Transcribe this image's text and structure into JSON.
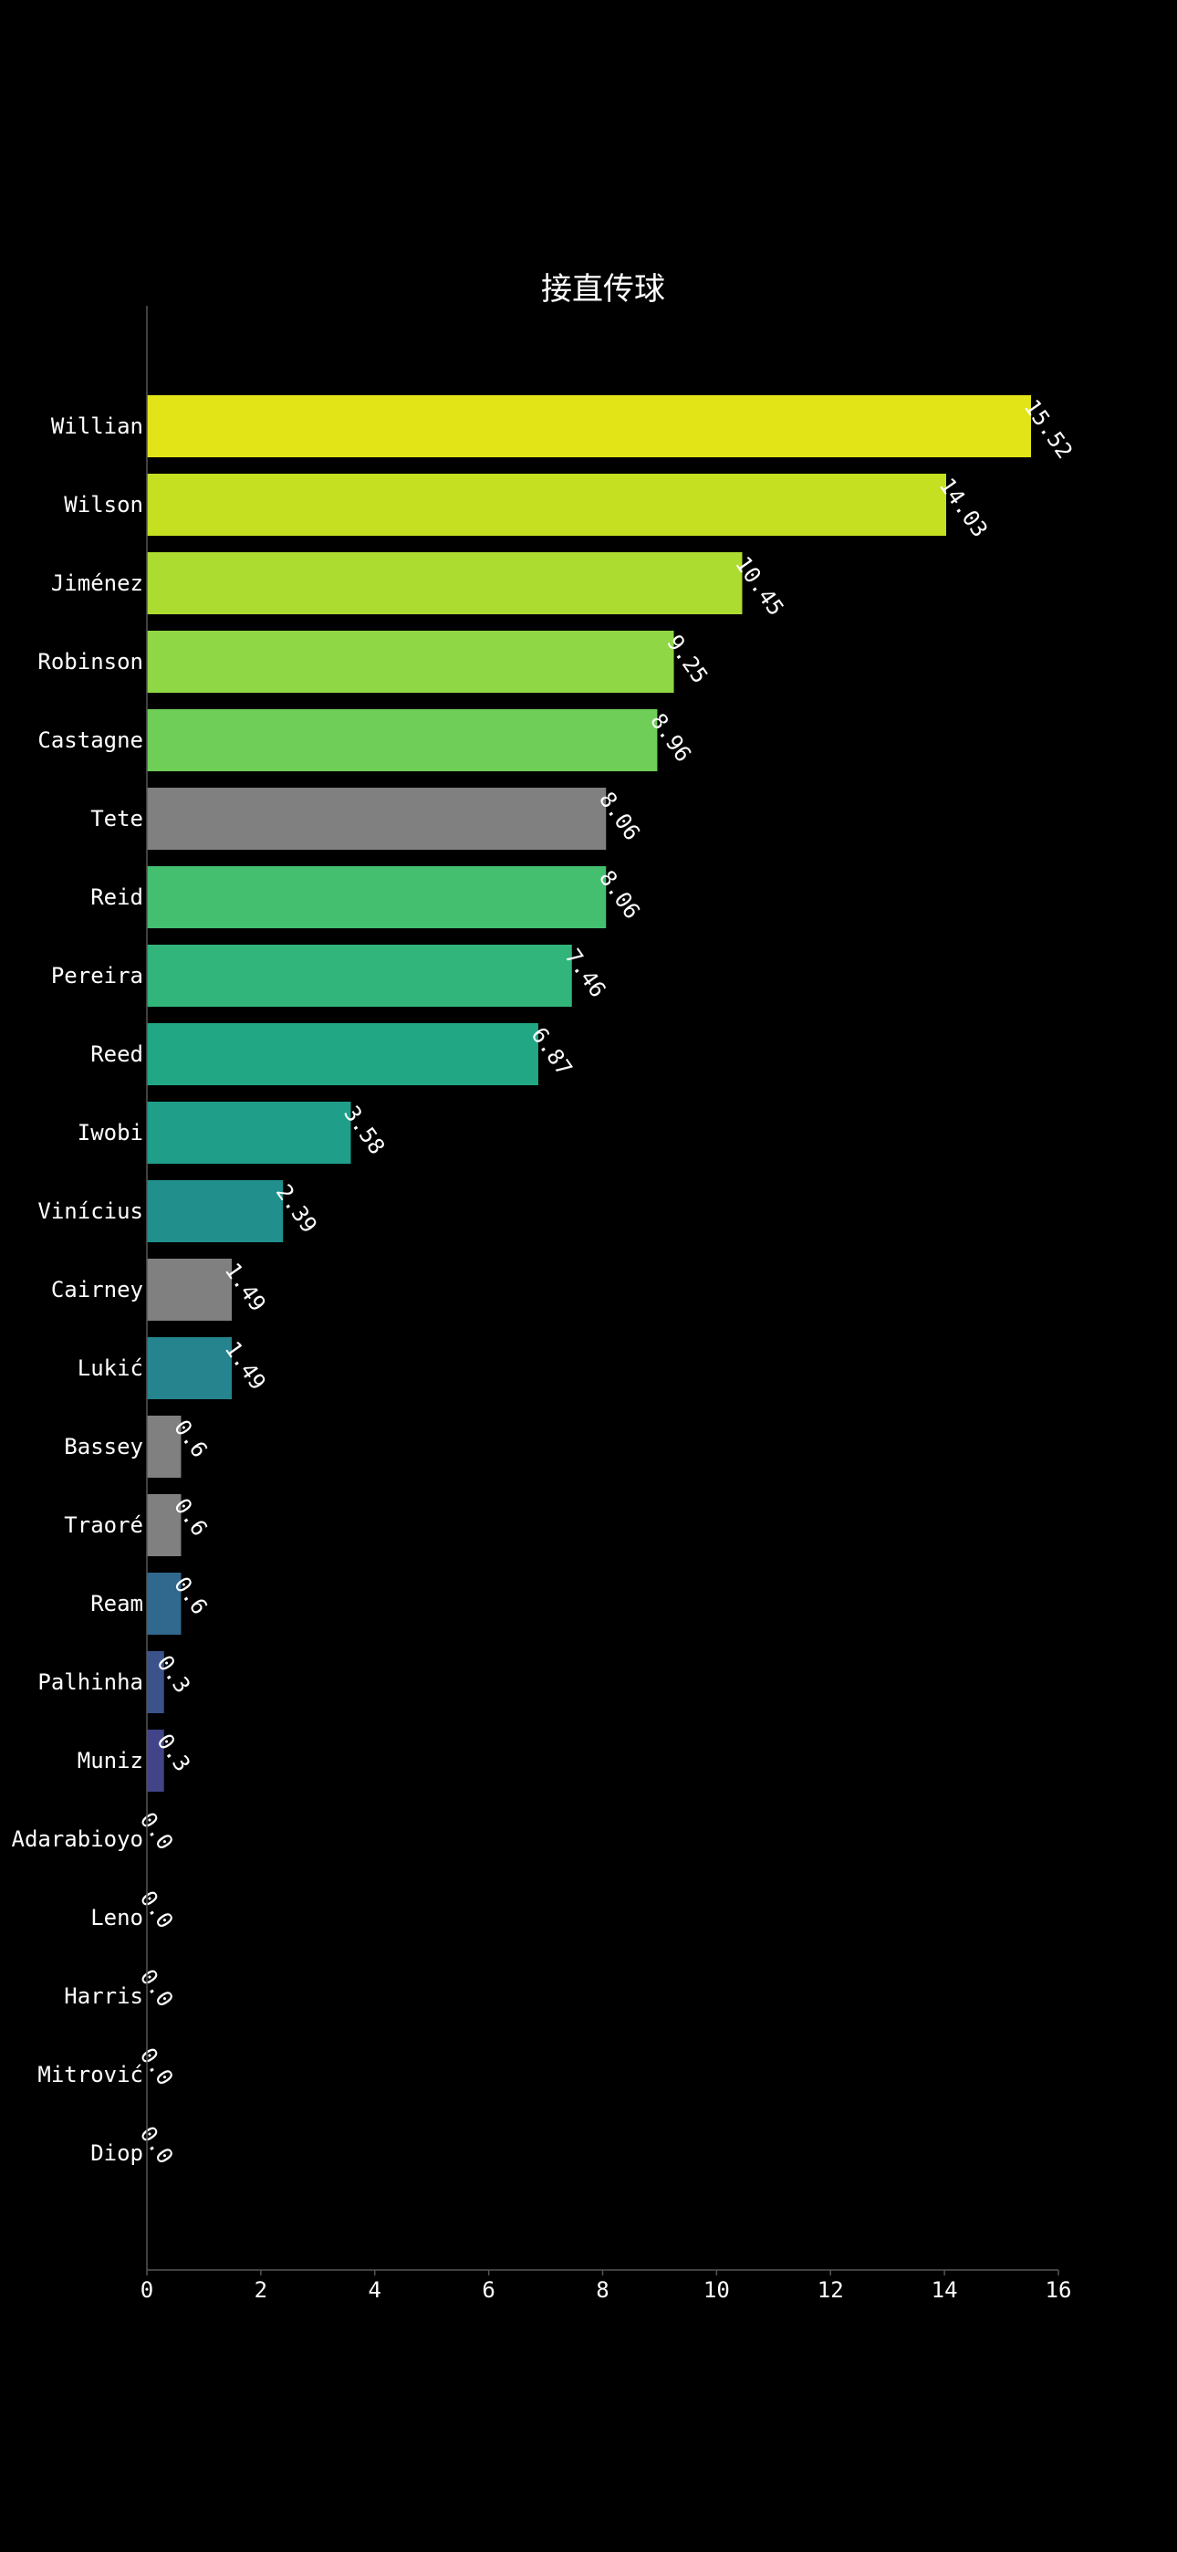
{
  "chart_data": {
    "type": "bar",
    "orientation": "horizontal",
    "title": "接直传球",
    "xlabel": "",
    "ylabel": "",
    "xlim": [
      0,
      16
    ],
    "xticks": [
      0,
      2,
      4,
      6,
      8,
      10,
      12,
      14,
      16
    ],
    "grid": false,
    "value_label_rotation": "diagonal",
    "categories": [
      "Willian",
      "Wilson",
      "Jiménez",
      "Robinson",
      "Castagne",
      "Tete",
      "Reid",
      "Pereira",
      "Reed",
      "Iwobi",
      "Vinícius",
      "Cairney",
      "Lukić",
      "Bassey",
      "Traoré",
      "Ream",
      "Palhinha",
      "Muniz",
      "Adarabioyo",
      "Leno",
      "Harris",
      "Mitrović",
      "Diop"
    ],
    "values": [
      15.52,
      14.03,
      10.45,
      9.25,
      8.96,
      8.06,
      8.06,
      7.46,
      6.87,
      3.58,
      2.39,
      1.49,
      1.49,
      0.6,
      0.6,
      0.6,
      0.3,
      0.3,
      0.0,
      0.0,
      0.0,
      0.0,
      0.0
    ],
    "value_labels": [
      "15.52",
      "14.03",
      "10.45",
      "9.25",
      "8.96",
      "8.06",
      "8.06",
      "7.46",
      "6.87",
      "3.58",
      "2.39",
      "1.49",
      "1.49",
      "0.6",
      "0.6",
      "0.6",
      "0.3",
      "0.3",
      "0.0",
      "0.0",
      "0.0",
      "0.0",
      "0.0"
    ],
    "colors": [
      "#e2e418",
      "#c5e021",
      "#addc30",
      "#8fd744",
      "#6ece58",
      "#808080",
      "#44bf70",
      "#31b57b",
      "#22a785",
      "#1f9e89",
      "#21908d",
      "#808080",
      "#25848e",
      "#808080",
      "#808080",
      "#31688e",
      "#3b528b",
      "#414487",
      "#46337f",
      "#472d7b",
      "#481f70",
      "#481668",
      "#440154"
    ],
    "background": "#000000",
    "axis_color": "#555555",
    "text_color": "#ffffff"
  }
}
